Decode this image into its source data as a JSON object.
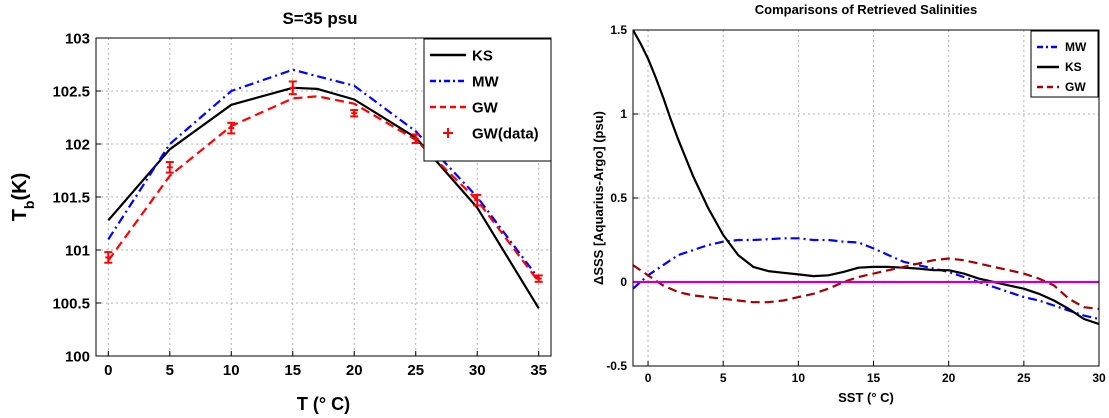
{
  "chart_data": [
    {
      "type": "line",
      "title": "S=35 psu",
      "xlabel": "T (° C)",
      "ylabel": "T_b(K)",
      "xlim": [
        -1,
        36
      ],
      "ylim": [
        100,
        103
      ],
      "xticks": [
        0,
        5,
        10,
        15,
        20,
        25,
        30,
        35
      ],
      "yticks": [
        100,
        100.5,
        101,
        101.5,
        102,
        102.5,
        103
      ],
      "grid": true,
      "legend_position": "top-right",
      "series": [
        {
          "name": "KS",
          "style": "solid",
          "color": "#000000",
          "x": [
            0,
            5,
            10,
            15,
            17,
            20,
            25,
            30,
            35
          ],
          "y": [
            101.28,
            101.95,
            102.37,
            102.53,
            102.52,
            102.42,
            102.06,
            101.4,
            100.45
          ]
        },
        {
          "name": "MW",
          "style": "dashdot",
          "color": "#0000ff",
          "x": [
            0,
            5,
            10,
            15,
            20,
            25,
            30,
            35
          ],
          "y": [
            101.1,
            102.0,
            102.5,
            102.7,
            102.55,
            102.12,
            101.5,
            100.73
          ]
        },
        {
          "name": "GW",
          "style": "dashed",
          "color": "#ff0000",
          "x": [
            0,
            5,
            10,
            15,
            17,
            20,
            25,
            30,
            35
          ],
          "y": [
            100.9,
            101.7,
            102.17,
            102.43,
            102.45,
            102.38,
            102.04,
            101.47,
            100.7
          ]
        },
        {
          "name": "GW(data)",
          "style": "errorbar",
          "color": "#ff0000",
          "x": [
            0,
            5,
            10,
            15,
            20,
            25,
            30,
            35
          ],
          "y": [
            100.93,
            101.78,
            102.15,
            102.53,
            102.29,
            102.05,
            101.47,
            100.73
          ],
          "err": [
            0.05,
            0.05,
            0.05,
            0.06,
            0.03,
            0.04,
            0.05,
            0.03
          ]
        }
      ]
    },
    {
      "type": "line",
      "title": "Comparisons of Retrieved Salinities",
      "xlabel": "SST (° C)",
      "ylabel": "ΔSSS [Aquarius-Argo] (psu)",
      "xlim": [
        -1,
        30
      ],
      "ylim": [
        -0.5,
        1.5
      ],
      "xticks": [
        0,
        5,
        10,
        15,
        20,
        25,
        30
      ],
      "yticks": [
        -0.5,
        0,
        0.5,
        1,
        1.5
      ],
      "grid": true,
      "legend_position": "top-right",
      "series": [
        {
          "name": "MW",
          "style": "dashdot",
          "color": "#0000ff",
          "x": [
            -1,
            0,
            1,
            2,
            3,
            4,
            5,
            6,
            7,
            8,
            9,
            10,
            11,
            12,
            13,
            14,
            15,
            16,
            17,
            18,
            19,
            20,
            21,
            22,
            23,
            24,
            25,
            26,
            27,
            28,
            29,
            30
          ],
          "y": [
            -0.04,
            0.04,
            0.1,
            0.16,
            0.19,
            0.22,
            0.24,
            0.25,
            0.25,
            0.255,
            0.26,
            0.26,
            0.25,
            0.25,
            0.24,
            0.235,
            0.2,
            0.16,
            0.12,
            0.1,
            0.08,
            0.06,
            0.03,
            0.0,
            -0.03,
            -0.06,
            -0.09,
            -0.11,
            -0.14,
            -0.17,
            -0.2,
            -0.22
          ]
        },
        {
          "name": "KS",
          "style": "solid",
          "color": "#000000",
          "x": [
            -1,
            -0.5,
            0,
            0.5,
            1,
            1.5,
            2,
            3,
            4,
            5,
            6,
            7,
            8,
            9,
            10,
            11,
            12,
            13,
            14,
            15,
            16,
            17,
            18,
            19,
            20,
            21,
            22,
            23,
            24,
            25,
            26,
            27,
            28,
            29,
            30
          ],
          "y": [
            1.5,
            1.42,
            1.33,
            1.22,
            1.1,
            0.97,
            0.85,
            0.63,
            0.44,
            0.28,
            0.16,
            0.09,
            0.065,
            0.055,
            0.045,
            0.035,
            0.04,
            0.06,
            0.085,
            0.09,
            0.09,
            0.085,
            0.08,
            0.07,
            0.07,
            0.05,
            0.02,
            0.0,
            -0.02,
            -0.04,
            -0.07,
            -0.11,
            -0.16,
            -0.22,
            -0.25
          ]
        },
        {
          "name": "GW",
          "style": "dashed",
          "color": "#a00000",
          "x": [
            -1,
            0,
            1,
            2,
            3,
            4,
            5,
            6,
            7,
            8,
            9,
            10,
            11,
            12,
            13,
            14,
            15,
            16,
            17,
            18,
            19,
            20,
            21,
            22,
            23,
            24,
            25,
            26,
            27,
            28,
            29,
            30
          ],
          "y": [
            0.1,
            0.04,
            -0.02,
            -0.06,
            -0.08,
            -0.09,
            -0.1,
            -0.11,
            -0.12,
            -0.12,
            -0.11,
            -0.09,
            -0.07,
            -0.04,
            0.0,
            0.03,
            0.05,
            0.07,
            0.09,
            0.11,
            0.13,
            0.14,
            0.13,
            0.11,
            0.09,
            0.07,
            0.05,
            0.02,
            -0.02,
            -0.1,
            -0.15,
            -0.16
          ]
        },
        {
          "name": "",
          "style": "solid",
          "color": "#c000c0",
          "x": [
            -1,
            30
          ],
          "y": [
            0,
            0
          ]
        }
      ]
    }
  ]
}
